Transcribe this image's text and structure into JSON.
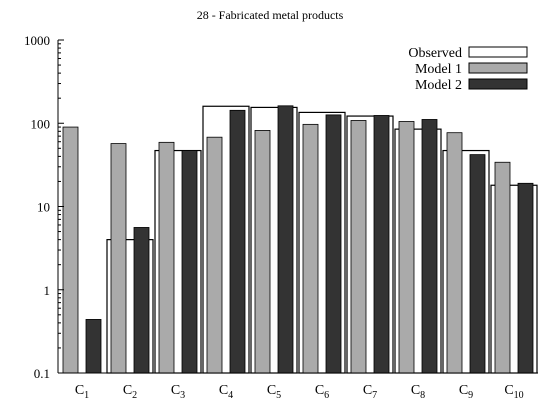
{
  "chart_data": {
    "type": "bar",
    "title": "28 - Fabricated metal products",
    "yscale": "log",
    "ylim": [
      0.1,
      1000
    ],
    "yticks": [
      "0.1",
      "1",
      "10",
      "100",
      "1000"
    ],
    "categories": [
      {
        "base": "C",
        "sub": "1"
      },
      {
        "base": "C",
        "sub": "2"
      },
      {
        "base": "C",
        "sub": "3"
      },
      {
        "base": "C",
        "sub": "4"
      },
      {
        "base": "C",
        "sub": "5"
      },
      {
        "base": "C",
        "sub": "6"
      },
      {
        "base": "C",
        "sub": "7"
      },
      {
        "base": "C",
        "sub": "8"
      },
      {
        "base": "C",
        "sub": "9"
      },
      {
        "base": "C",
        "sub": "10"
      }
    ],
    "series": [
      {
        "name": "Observed",
        "color": "#ffffff",
        "values": [
          0.1,
          4,
          47,
          160,
          155,
          135,
          122,
          85,
          47,
          18
        ]
      },
      {
        "name": "Model 1",
        "color": "#aaaaaa",
        "values": [
          90,
          57,
          59,
          68,
          82,
          97,
          108,
          105,
          77,
          34
        ]
      },
      {
        "name": "Model 2",
        "color": "#333333",
        "values": [
          0.44,
          5.6,
          47,
          143,
          162,
          126,
          124,
          111,
          42,
          19
        ]
      }
    ],
    "legend_position": "top-right",
    "grid": false
  }
}
